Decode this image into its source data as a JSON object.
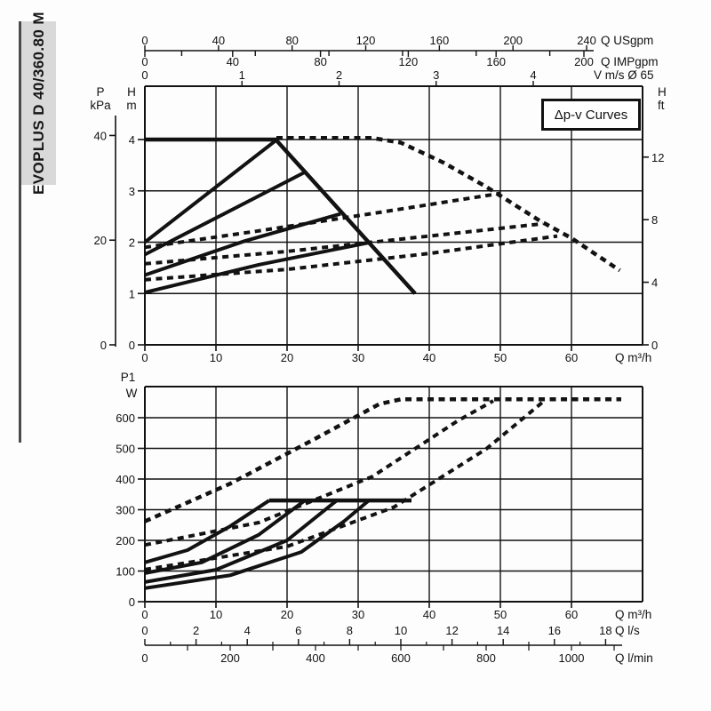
{
  "sidebar": {
    "model": "EVOPLUS D 40/360.80 M"
  },
  "legend": {
    "label": "Δp-v Curves"
  },
  "chart_data": [
    {
      "id": "head-flow",
      "type": "line",
      "title": "Pump head vs flow (Δp-v curves)",
      "xlabel": "Q m³/h",
      "ylabel": "H m",
      "x_range": [
        0,
        70
      ],
      "y_range": [
        0,
        5
      ],
      "grid": "on",
      "axes": {
        "bottom": {
          "unit": "Q m³/h",
          "labels": [
            0,
            10,
            20,
            30,
            40,
            50,
            60
          ]
        },
        "top": [
          {
            "unit": "Q USgpm",
            "labels": [
              0,
              40,
              80,
              120,
              160,
              200,
              240
            ],
            "minor_step": 20
          },
          {
            "unit": "Q IMPgpm",
            "labels": [
              0,
              40,
              80,
              120,
              160,
              200
            ],
            "minor_step": 40
          },
          {
            "unit": "V m/s Ø 65",
            "labels": [
              0,
              1,
              2,
              3,
              4
            ]
          }
        ],
        "left_inner": {
          "unit_lines": [
            "H",
            "m"
          ],
          "labels": [
            0,
            1,
            2,
            3,
            4
          ]
        },
        "left_outer": {
          "unit_lines": [
            "P",
            "kPa"
          ],
          "labels": [
            0,
            20,
            40
          ]
        },
        "right": {
          "unit_lines": [
            "H",
            "ft"
          ],
          "labels": [
            0,
            4,
            8,
            12
          ]
        }
      },
      "series": [
        {
          "name": "max-speed-single",
          "style": "solid",
          "points": [
            [
              0,
              4.0
            ],
            [
              18.4,
              4.0
            ],
            [
              38,
              1.0
            ]
          ]
        },
        {
          "name": "dpv-single-1",
          "style": "solid",
          "points": [
            [
              0,
              2.0
            ],
            [
              18.4,
              3.98
            ]
          ]
        },
        {
          "name": "dpv-single-2",
          "style": "solid",
          "points": [
            [
              0,
              1.76
            ],
            [
              22.6,
              3.37
            ]
          ]
        },
        {
          "name": "dpv-single-3",
          "style": "solid",
          "points": [
            [
              0,
              1.36
            ],
            [
              14,
              2.02
            ],
            [
              27.5,
              2.55
            ]
          ]
        },
        {
          "name": "dpv-single-4",
          "style": "solid",
          "points": [
            [
              0,
              1.02
            ],
            [
              16,
              1.56
            ],
            [
              31.8,
              2.0
            ]
          ]
        },
        {
          "name": "max-speed-parallel",
          "style": "dotted",
          "points": [
            [
              18.5,
              4.03
            ],
            [
              32,
              4.03
            ],
            [
              36,
              3.94
            ],
            [
              42,
              3.55
            ],
            [
              48,
              3.08
            ],
            [
              55.5,
              2.42
            ],
            [
              60,
              2.08
            ],
            [
              66.8,
              1.45
            ]
          ]
        },
        {
          "name": "dpv-parallel-1",
          "style": "dotted",
          "points": [
            [
              0,
              1.9
            ],
            [
              16,
              2.22
            ],
            [
              33,
              2.58
            ],
            [
              50,
              2.95
            ]
          ]
        },
        {
          "name": "dpv-parallel-2",
          "style": "dotted",
          "points": [
            [
              0,
              1.58
            ],
            [
              20,
              1.82
            ],
            [
              40,
              2.12
            ],
            [
              56,
              2.36
            ]
          ]
        },
        {
          "name": "dpv-parallel-3",
          "style": "dotted",
          "points": [
            [
              0,
              1.27
            ],
            [
              20,
              1.47
            ],
            [
              40,
              1.78
            ],
            [
              58,
              2.12
            ]
          ]
        }
      ]
    },
    {
      "id": "power-flow",
      "type": "line",
      "title": "Absorbed power vs flow",
      "xlabel": "Q m³/h",
      "ylabel": "P1 W",
      "x_range": [
        0,
        70
      ],
      "y_range": [
        0,
        700
      ],
      "grid": "on",
      "axes": {
        "left": {
          "unit_lines": [
            "P1",
            "W"
          ],
          "labels": [
            0,
            100,
            200,
            300,
            400,
            500,
            600
          ]
        },
        "bottom": [
          {
            "unit": "Q m³/h",
            "labels": [
              0,
              10,
              20,
              30,
              40,
              50,
              60
            ]
          },
          {
            "unit": "Q l/s",
            "labels": [
              0,
              2,
              4,
              6,
              8,
              10,
              12,
              14,
              16,
              18
            ],
            "minor_step": 1
          },
          {
            "unit": "Q l/min",
            "labels": [
              0,
              200,
              400,
              600,
              800,
              1000
            ],
            "minor_step": 100
          }
        ]
      },
      "series": [
        {
          "name": "power-limit-single",
          "style": "solid",
          "points": [
            [
              17.5,
              330
            ],
            [
              37.5,
              330
            ]
          ]
        },
        {
          "name": "power-single-1",
          "style": "solid",
          "points": [
            [
              0,
              128
            ],
            [
              6,
              168
            ],
            [
              12,
              246
            ],
            [
              17.5,
              330
            ]
          ]
        },
        {
          "name": "power-single-2",
          "style": "solid",
          "points": [
            [
              0,
              93
            ],
            [
              8,
              128
            ],
            [
              16,
              218
            ],
            [
              22.5,
              330
            ]
          ]
        },
        {
          "name": "power-single-3",
          "style": "solid",
          "points": [
            [
              0,
              64
            ],
            [
              10,
              104
            ],
            [
              20,
              200
            ],
            [
              27,
              330
            ]
          ]
        },
        {
          "name": "power-single-4",
          "style": "solid",
          "points": [
            [
              0,
              44
            ],
            [
              12,
              86
            ],
            [
              22,
              162
            ],
            [
              28,
              262
            ],
            [
              31.5,
              330
            ]
          ]
        },
        {
          "name": "power-parallel-max",
          "style": "dotted",
          "points": [
            [
              0,
              262
            ],
            [
              12,
              385
            ],
            [
              24,
              532
            ],
            [
              33,
              645
            ],
            [
              36,
              660
            ],
            [
              67,
              660
            ]
          ]
        },
        {
          "name": "power-parallel-2",
          "style": "dotted",
          "points": [
            [
              0,
              185
            ],
            [
              16,
              258
            ],
            [
              32,
              408
            ],
            [
              44,
              590
            ],
            [
              49,
              655
            ]
          ]
        },
        {
          "name": "power-parallel-3",
          "style": "dotted",
          "points": [
            [
              0,
              105
            ],
            [
              20,
              180
            ],
            [
              35,
              308
            ],
            [
              48,
              498
            ],
            [
              56,
              652
            ]
          ]
        }
      ]
    }
  ]
}
